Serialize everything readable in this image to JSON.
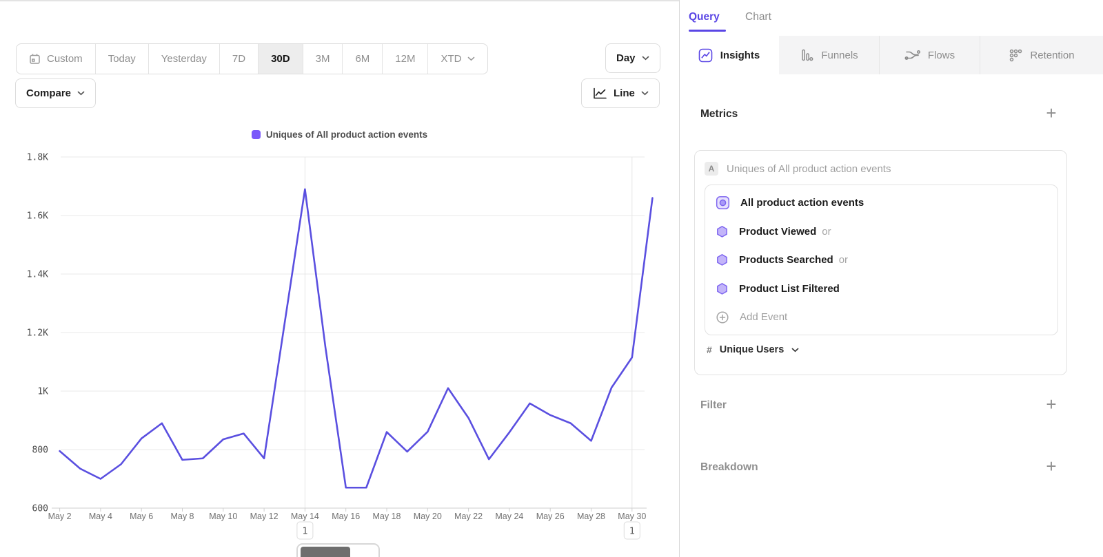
{
  "colors": {
    "accent": "#5a46e5",
    "line": "#5a4fe0",
    "legend_swatch": "#7a58fa",
    "hexagon_fill": "#c3b5f9",
    "hexagon_stroke": "#8068f0"
  },
  "toolbar": {
    "date_ranges": [
      "Custom",
      "Today",
      "Yesterday",
      "7D",
      "30D",
      "3M",
      "6M",
      "12M",
      "XTD"
    ],
    "active_range": "30D",
    "granularity": "Day",
    "compare": "Compare",
    "chart_type": "Line"
  },
  "legend": {
    "label": "Uniques of All product action events"
  },
  "panel": {
    "view_tabs": {
      "query": "Query",
      "chart": "Chart"
    },
    "report_tabs": {
      "insights": "Insights",
      "funnels": "Funnels",
      "flows": "Flows",
      "retention": "Retention"
    },
    "metrics": {
      "title": "Metrics",
      "add": "+",
      "row_badge": "A",
      "row_label": "Uniques of All product action events",
      "events": [
        {
          "name": "All product action events",
          "suffix": ""
        },
        {
          "name": "Product Viewed",
          "suffix": "or"
        },
        {
          "name": "Products Searched",
          "suffix": "or"
        },
        {
          "name": "Product List Filtered",
          "suffix": ""
        }
      ],
      "add_event": "Add Event",
      "aggregation_prefix": "#",
      "aggregation": "Unique Users"
    },
    "filter": {
      "title": "Filter",
      "add": "+"
    },
    "breakdown": {
      "title": "Breakdown",
      "add": "+"
    }
  },
  "chart_data": {
    "type": "line",
    "title": "",
    "legend": [
      "Uniques of All product action events"
    ],
    "x": [
      "May 2",
      "May 3",
      "May 4",
      "May 5",
      "May 6",
      "May 7",
      "May 8",
      "May 9",
      "May 10",
      "May 11",
      "May 12",
      "May 13",
      "May 14",
      "May 15",
      "May 16",
      "May 17",
      "May 18",
      "May 19",
      "May 20",
      "May 21",
      "May 22",
      "May 23",
      "May 24",
      "May 25",
      "May 26",
      "May 27",
      "May 28",
      "May 29",
      "May 30",
      "May 31"
    ],
    "series": [
      {
        "name": "Uniques of All product action events",
        "color": "#5a4fe0",
        "values": [
          795,
          735,
          700,
          750,
          838,
          890,
          765,
          770,
          835,
          855,
          770,
          1230,
          1690,
          1150,
          670,
          670,
          860,
          793,
          861,
          1010,
          908,
          767,
          859,
          958,
          918,
          890,
          830,
          1012,
          1115,
          1660
        ]
      }
    ],
    "ylim": [
      600,
      1800
    ],
    "yticks": [
      "600",
      "800",
      "1K",
      "1.2K",
      "1.4K",
      "1.6K",
      "1.8K"
    ],
    "xtick_labels": [
      "May 2",
      "May 4",
      "May 6",
      "May 8",
      "May 10",
      "May 12",
      "May 14",
      "May 16",
      "May 18",
      "May 20",
      "May 22",
      "May 24",
      "May 26",
      "May 28",
      "May 30"
    ],
    "annotations": [
      {
        "x": "May 14",
        "label": "1"
      },
      {
        "x": "May 30",
        "label": "1"
      }
    ],
    "grid": true,
    "legend_position": "top-center"
  }
}
